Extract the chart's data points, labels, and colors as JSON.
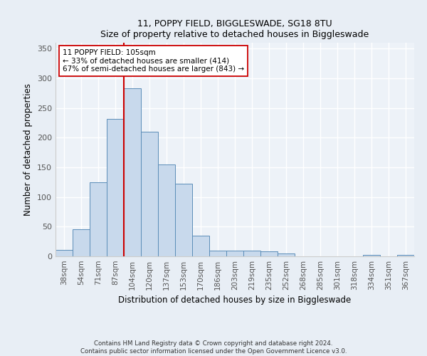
{
  "title1": "11, POPPY FIELD, BIGGLESWADE, SG18 8TU",
  "title2": "Size of property relative to detached houses in Biggleswade",
  "xlabel": "Distribution of detached houses by size in Biggleswade",
  "ylabel": "Number of detached properties",
  "categories": [
    "38sqm",
    "54sqm",
    "71sqm",
    "87sqm",
    "104sqm",
    "120sqm",
    "137sqm",
    "153sqm",
    "170sqm",
    "186sqm",
    "203sqm",
    "219sqm",
    "235sqm",
    "252sqm",
    "268sqm",
    "285sqm",
    "301sqm",
    "318sqm",
    "334sqm",
    "351sqm",
    "367sqm"
  ],
  "values": [
    11,
    46,
    125,
    232,
    283,
    210,
    155,
    123,
    35,
    10,
    10,
    10,
    8,
    5,
    0,
    0,
    0,
    0,
    2,
    0,
    2
  ],
  "bar_color": "#c8d9ec",
  "bar_edge_color": "#5b8db8",
  "property_line_index": 4,
  "property_line_color": "#cc0000",
  "annot_line1": "11 POPPY FIELD: 105sqm",
  "annot_line2": "← 33% of detached houses are smaller (414)",
  "annot_line3": "67% of semi-detached houses are larger (843) →",
  "ylim": [
    0,
    360
  ],
  "yticks": [
    0,
    50,
    100,
    150,
    200,
    250,
    300,
    350
  ],
  "footer1": "Contains HM Land Registry data © Crown copyright and database right 2024.",
  "footer2": "Contains public sector information licensed under the Open Government Licence v3.0.",
  "bg_color": "#e8eef5",
  "plot_bg_color": "#edf2f8"
}
